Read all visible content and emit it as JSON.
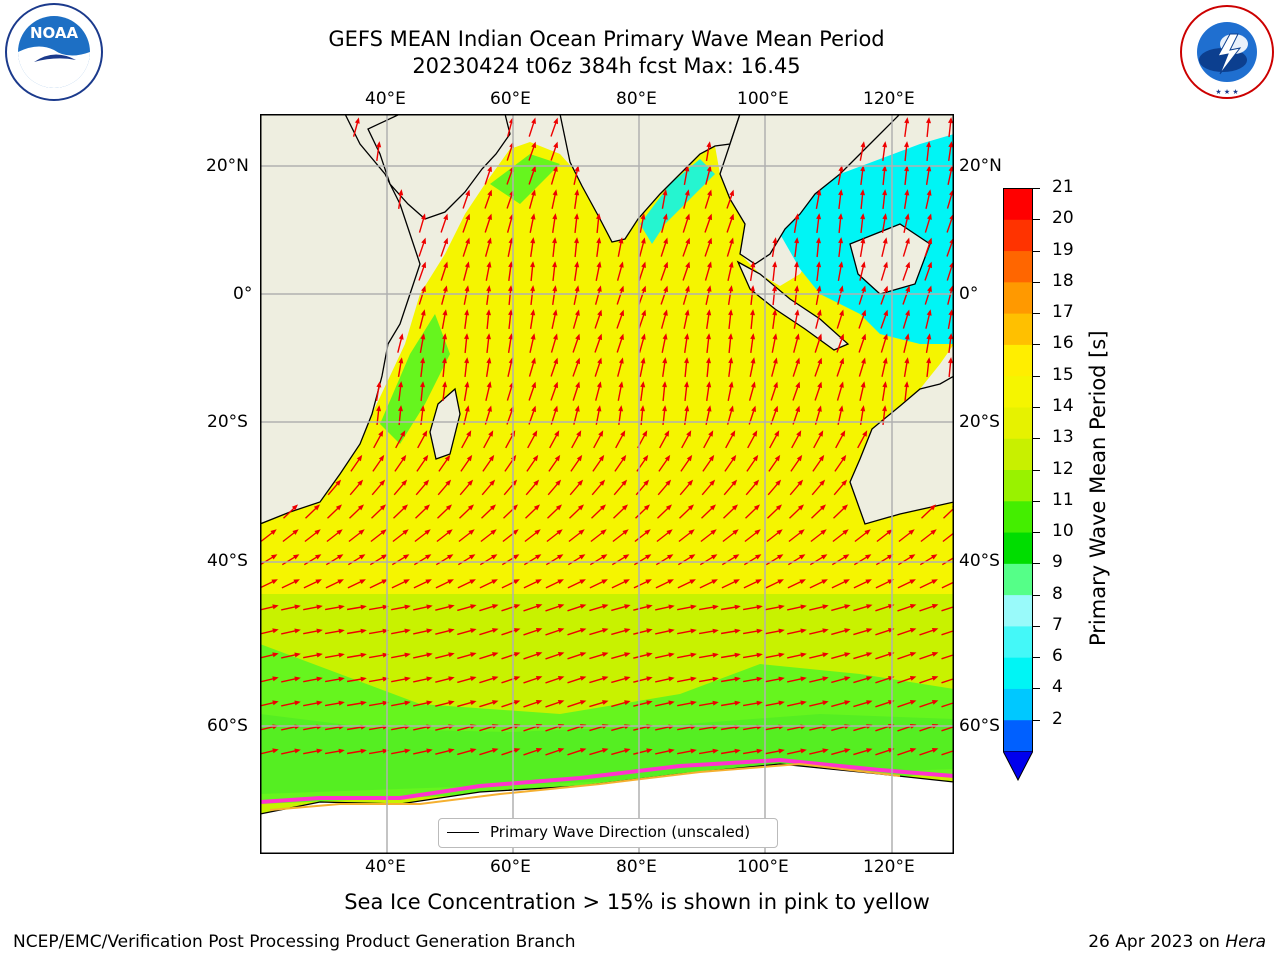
{
  "title": {
    "line1": "GEFS MEAN Indian Ocean Primary Wave Mean Period",
    "line2": "20230424 t06z 384h fcst   Max: 16.45"
  },
  "logos": {
    "left_name": "NOAA",
    "left_ring_text": "NATIONAL OCEANIC AND ATMOSPHERIC ADMINISTRATION · U.S. DEPARTMENT OF COMMERCE",
    "right_ring_text": "NATIONAL WEATHER SERVICE"
  },
  "map": {
    "lon_labels": [
      "40°E",
      "60°E",
      "80°E",
      "100°E",
      "120°E"
    ],
    "lat_labels": [
      "20°N",
      "0°",
      "20°S",
      "40°S",
      "60°S"
    ],
    "lon_range": [
      20,
      130
    ],
    "lat_range": [
      -73,
      28
    ],
    "gridlines": true,
    "legend_label": "Primary Wave Direction (unscaled)",
    "colors": {
      "land": "#eeeee0",
      "ocean_main": "#f5f500",
      "ocean_south": "#c8f200",
      "ocean_belt": "#66f51e",
      "coastal_cyan": "#00f5f5",
      "arrow": "#ee0000",
      "ice": "#ff33cc"
    }
  },
  "colorbar": {
    "label": "Primary Wave Mean Period [s]",
    "ticks": [
      "2",
      "4",
      "6",
      "7",
      "8",
      "9",
      "10",
      "11",
      "12",
      "13",
      "14",
      "15",
      "16",
      "17",
      "18",
      "19",
      "20",
      "21"
    ],
    "tick_labels_shown": [
      "21",
      "20",
      "19",
      "18",
      "17",
      "16",
      "15",
      "14",
      "13",
      "12",
      "11",
      "10",
      "9",
      "8",
      "7",
      "6",
      "4",
      "2"
    ],
    "colors": [
      "#0060ff",
      "#00c8ff",
      "#00f5f5",
      "#44f8f8",
      "#99fafa",
      "#55ff88",
      "#00dd00",
      "#44ee00",
      "#99f200",
      "#c8f000",
      "#e6f200",
      "#f5f500",
      "#ffee00",
      "#ffc000",
      "#ff9900",
      "#ff6600",
      "#ff3300",
      "#ff0000"
    ],
    "under_color": "#0000ee"
  },
  "sea_ice_note": "Sea Ice Concentration > 15% is shown in pink to yellow",
  "footer": {
    "left": "NCEP/EMC/Verification Post Processing Product Generation Branch",
    "right_date": "26 Apr 2023 on ",
    "right_host": "Hera"
  }
}
